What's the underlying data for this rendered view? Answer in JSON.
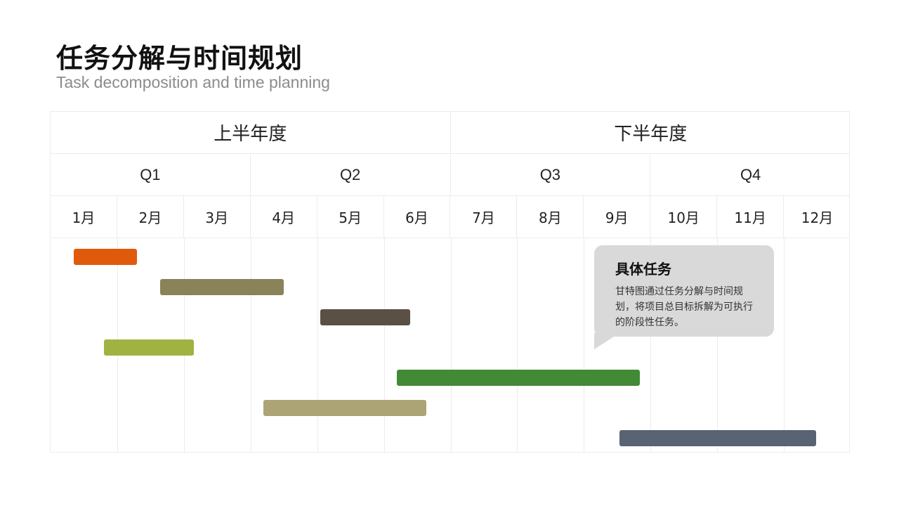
{
  "header": {
    "title": "任务分解与时间规划",
    "subtitle": "Task decomposition and time planning"
  },
  "gantt": {
    "halves": [
      "上半年度",
      "下半年度"
    ],
    "quarters": [
      "Q1",
      "Q2",
      "Q3",
      "Q4"
    ],
    "months": [
      "1月",
      "2月",
      "3月",
      "4月",
      "5月",
      "6月",
      "7月",
      "8月",
      "9月",
      "10月",
      "11月",
      "12月"
    ],
    "tasks": [
      {
        "start_month": 1.35,
        "end_month": 2.3,
        "color": "#e05a0c"
      },
      {
        "start_month": 2.65,
        "end_month": 4.5,
        "color": "#8a8258"
      },
      {
        "start_month": 5.05,
        "end_month": 6.4,
        "color": "#5a5044"
      },
      {
        "start_month": 1.8,
        "end_month": 3.15,
        "color": "#a0b342"
      },
      {
        "start_month": 6.2,
        "end_month": 9.85,
        "color": "#428a36"
      },
      {
        "start_month": 4.2,
        "end_month": 6.65,
        "color": "#ada475"
      },
      {
        "start_month": 9.55,
        "end_month": 12.5,
        "color": "#586473"
      }
    ]
  },
  "callout": {
    "title": "具体任务",
    "text": "甘特图通过任务分解与时间规划，将项目总目标拆解为可执行的阶段性任务。"
  }
}
